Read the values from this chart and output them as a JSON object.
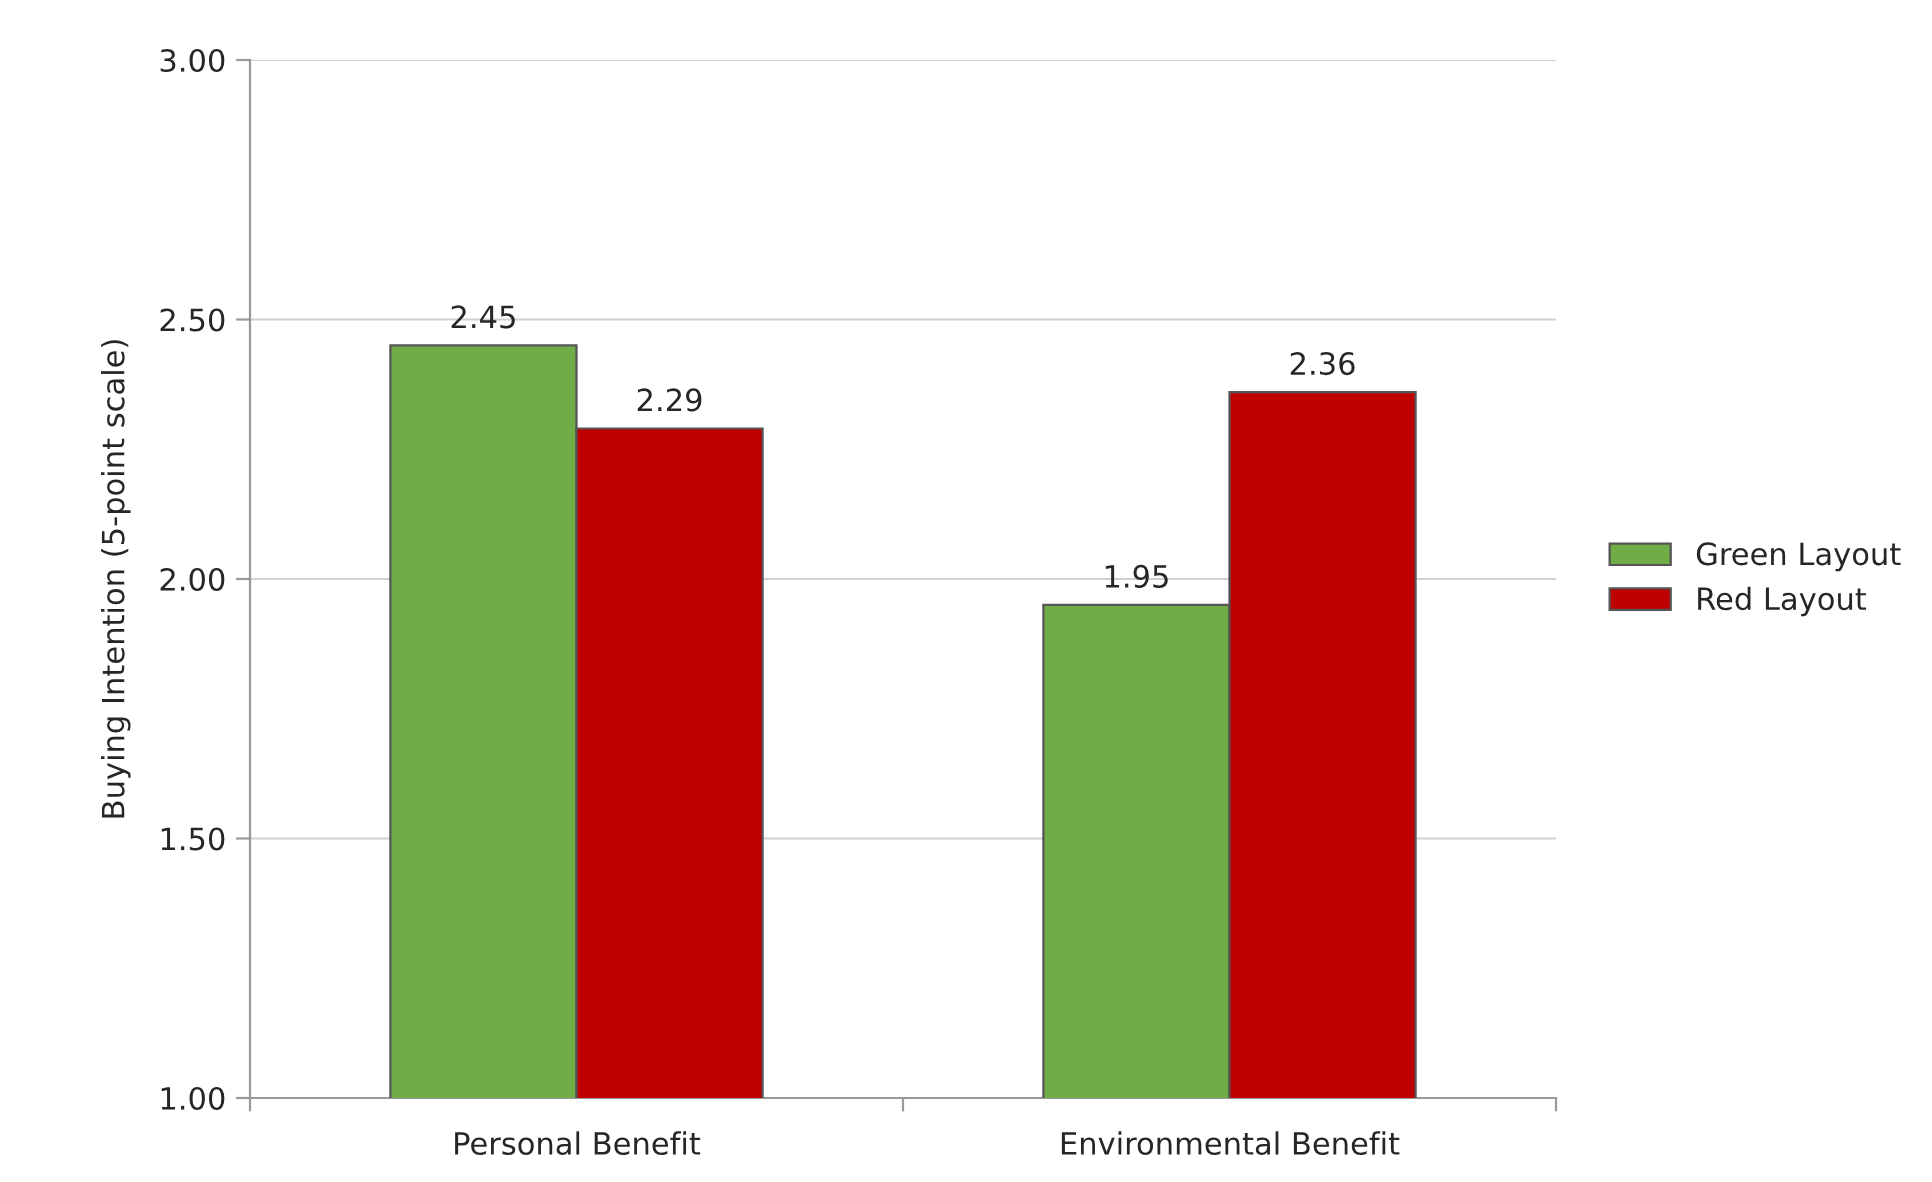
{
  "chart_data": {
    "type": "bar",
    "ylabel": "Buying Intention (5-point scale)",
    "categories": [
      "Personal Benefit",
      "Environmental Benefit"
    ],
    "series": [
      {
        "name": "Green Layout",
        "color": "#70ad47",
        "values": [
          2.45,
          1.95
        ]
      },
      {
        "name": "Red Layout",
        "color": "#c00000",
        "values": [
          2.29,
          2.36
        ]
      }
    ],
    "ylim": [
      1,
      3
    ],
    "yticks": [
      {
        "value": 1,
        "label": "1.00"
      },
      {
        "value": 1.5,
        "label": "1.50"
      },
      {
        "value": 2,
        "label": "2.00"
      },
      {
        "value": 2.5,
        "label": "2.50"
      },
      {
        "value": 3,
        "label": "3.00"
      }
    ],
    "grid": "y",
    "legend": "right",
    "data_labels": true
  }
}
